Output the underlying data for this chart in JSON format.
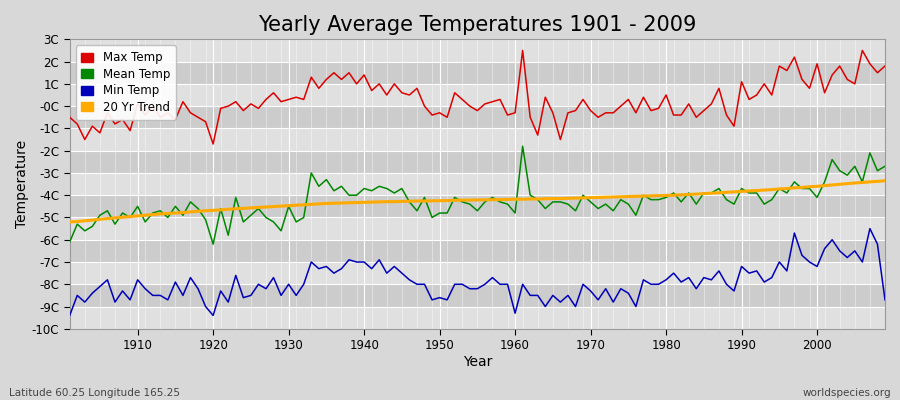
{
  "title": "Yearly Average Temperatures 1901 - 2009",
  "xlabel": "Year",
  "ylabel": "Temperature",
  "lat_lon_label": "Latitude 60.25 Longitude 165.25",
  "watermark": "worldspecies.org",
  "years": [
    1901,
    1902,
    1903,
    1904,
    1905,
    1906,
    1907,
    1908,
    1909,
    1910,
    1911,
    1912,
    1913,
    1914,
    1915,
    1916,
    1917,
    1918,
    1919,
    1920,
    1921,
    1922,
    1923,
    1924,
    1925,
    1926,
    1927,
    1928,
    1929,
    1930,
    1931,
    1932,
    1933,
    1934,
    1935,
    1936,
    1937,
    1938,
    1939,
    1940,
    1941,
    1942,
    1943,
    1944,
    1945,
    1946,
    1947,
    1948,
    1949,
    1950,
    1951,
    1952,
    1953,
    1954,
    1955,
    1956,
    1957,
    1958,
    1959,
    1960,
    1961,
    1962,
    1963,
    1964,
    1965,
    1966,
    1967,
    1968,
    1969,
    1970,
    1971,
    1972,
    1973,
    1974,
    1975,
    1976,
    1977,
    1978,
    1979,
    1980,
    1981,
    1982,
    1983,
    1984,
    1985,
    1986,
    1987,
    1988,
    1989,
    1990,
    1991,
    1992,
    1993,
    1994,
    1995,
    1996,
    1997,
    1998,
    1999,
    2000,
    2001,
    2002,
    2003,
    2004,
    2005,
    2006,
    2007,
    2008,
    2009
  ],
  "max_temp": [
    -0.5,
    -0.8,
    -1.5,
    -0.9,
    -1.2,
    -0.3,
    -0.8,
    -0.6,
    -1.1,
    0.1,
    -0.4,
    0.0,
    -0.5,
    -0.3,
    -0.6,
    0.2,
    -0.3,
    -0.5,
    -0.7,
    -1.7,
    -0.1,
    0.0,
    0.2,
    -0.2,
    0.1,
    -0.1,
    0.3,
    0.6,
    0.2,
    0.3,
    0.4,
    0.3,
    1.3,
    0.8,
    1.2,
    1.5,
    1.2,
    1.5,
    1.0,
    1.4,
    0.7,
    1.0,
    0.5,
    1.0,
    0.6,
    0.5,
    0.8,
    0.0,
    -0.4,
    -0.3,
    -0.5,
    0.6,
    0.3,
    0.0,
    -0.2,
    0.1,
    0.2,
    0.3,
    -0.4,
    -0.3,
    2.5,
    -0.5,
    -1.3,
    0.4,
    -0.3,
    -1.5,
    -0.3,
    -0.2,
    0.3,
    -0.2,
    -0.5,
    -0.3,
    -0.3,
    0.0,
    0.3,
    -0.3,
    0.4,
    -0.2,
    -0.1,
    0.5,
    -0.4,
    -0.4,
    0.1,
    -0.5,
    -0.2,
    0.1,
    0.8,
    -0.4,
    -0.9,
    1.1,
    0.3,
    0.5,
    1.0,
    0.5,
    1.8,
    1.6,
    2.2,
    1.2,
    0.8,
    1.9,
    0.6,
    1.4,
    1.8,
    1.2,
    1.0,
    2.5,
    1.9,
    1.5,
    1.8
  ],
  "mean_temp": [
    -6.1,
    -5.3,
    -5.6,
    -5.4,
    -4.9,
    -4.7,
    -5.3,
    -4.8,
    -5.0,
    -4.5,
    -5.2,
    -4.8,
    -4.7,
    -5.0,
    -4.5,
    -4.9,
    -4.3,
    -4.6,
    -5.1,
    -6.2,
    -4.6,
    -5.8,
    -4.1,
    -5.2,
    -4.9,
    -4.6,
    -5.0,
    -5.2,
    -5.6,
    -4.5,
    -5.2,
    -5.0,
    -3.0,
    -3.6,
    -3.3,
    -3.8,
    -3.6,
    -4.0,
    -4.0,
    -3.7,
    -3.8,
    -3.6,
    -3.7,
    -3.9,
    -3.7,
    -4.3,
    -4.7,
    -4.1,
    -5.0,
    -4.8,
    -4.8,
    -4.1,
    -4.3,
    -4.4,
    -4.7,
    -4.3,
    -4.1,
    -4.3,
    -4.4,
    -4.8,
    -1.8,
    -4.0,
    -4.2,
    -4.6,
    -4.3,
    -4.3,
    -4.4,
    -4.7,
    -4.0,
    -4.3,
    -4.6,
    -4.4,
    -4.7,
    -4.2,
    -4.4,
    -4.9,
    -4.0,
    -4.2,
    -4.2,
    -4.1,
    -3.9,
    -4.3,
    -3.9,
    -4.4,
    -3.9,
    -3.9,
    -3.7,
    -4.2,
    -4.4,
    -3.7,
    -3.9,
    -3.9,
    -4.4,
    -4.2,
    -3.7,
    -3.9,
    -3.4,
    -3.7,
    -3.7,
    -4.1,
    -3.4,
    -2.4,
    -2.9,
    -3.1,
    -2.7,
    -3.4,
    -2.1,
    -2.9,
    -2.7
  ],
  "min_temp": [
    -9.4,
    -8.5,
    -8.8,
    -8.4,
    -8.1,
    -7.8,
    -8.8,
    -8.3,
    -8.7,
    -7.8,
    -8.2,
    -8.5,
    -8.5,
    -8.7,
    -7.9,
    -8.5,
    -7.7,
    -8.2,
    -9.0,
    -9.4,
    -8.3,
    -8.8,
    -7.6,
    -8.6,
    -8.5,
    -8.0,
    -8.2,
    -7.7,
    -8.5,
    -8.0,
    -8.5,
    -8.0,
    -7.0,
    -7.3,
    -7.2,
    -7.5,
    -7.3,
    -6.9,
    -7.0,
    -7.0,
    -7.3,
    -6.9,
    -7.5,
    -7.2,
    -7.5,
    -7.8,
    -8.0,
    -8.0,
    -8.7,
    -8.6,
    -8.7,
    -8.0,
    -8.0,
    -8.2,
    -8.2,
    -8.0,
    -7.7,
    -8.0,
    -8.0,
    -9.3,
    -8.0,
    -8.5,
    -8.5,
    -9.0,
    -8.5,
    -8.8,
    -8.5,
    -9.0,
    -8.0,
    -8.3,
    -8.7,
    -8.2,
    -8.8,
    -8.2,
    -8.4,
    -9.0,
    -7.8,
    -8.0,
    -8.0,
    -7.8,
    -7.5,
    -7.9,
    -7.7,
    -8.2,
    -7.7,
    -7.8,
    -7.4,
    -8.0,
    -8.3,
    -7.2,
    -7.5,
    -7.4,
    -7.9,
    -7.7,
    -7.0,
    -7.4,
    -5.7,
    -6.7,
    -7.0,
    -7.2,
    -6.4,
    -6.0,
    -6.5,
    -6.8,
    -6.5,
    -7.0,
    -5.5,
    -6.2,
    -8.7
  ],
  "trend_temp": [
    -5.2,
    -5.18,
    -5.15,
    -5.12,
    -5.08,
    -5.05,
    -5.02,
    -4.99,
    -4.96,
    -4.93,
    -4.9,
    -4.87,
    -4.84,
    -4.82,
    -4.8,
    -4.78,
    -4.75,
    -4.72,
    -4.7,
    -4.68,
    -4.66,
    -4.63,
    -4.61,
    -4.59,
    -4.57,
    -4.55,
    -4.53,
    -4.51,
    -4.49,
    -4.47,
    -4.45,
    -4.43,
    -4.41,
    -4.39,
    -4.37,
    -4.36,
    -4.35,
    -4.34,
    -4.33,
    -4.32,
    -4.31,
    -4.3,
    -4.29,
    -4.29,
    -4.28,
    -4.27,
    -4.26,
    -4.26,
    -4.25,
    -4.25,
    -4.24,
    -4.23,
    -4.22,
    -4.22,
    -4.21,
    -4.21,
    -4.2,
    -4.2,
    -4.19,
    -4.18,
    -4.18,
    -4.17,
    -4.17,
    -4.16,
    -4.15,
    -4.15,
    -4.14,
    -4.13,
    -4.12,
    -4.11,
    -4.1,
    -4.09,
    -4.08,
    -4.07,
    -4.06,
    -4.05,
    -4.04,
    -4.03,
    -4.02,
    -4.01,
    -4.0,
    -3.98,
    -3.97,
    -3.95,
    -3.93,
    -3.91,
    -3.89,
    -3.87,
    -3.85,
    -3.83,
    -3.81,
    -3.79,
    -3.77,
    -3.75,
    -3.72,
    -3.7,
    -3.67,
    -3.65,
    -3.62,
    -3.6,
    -3.57,
    -3.54,
    -3.51,
    -3.48,
    -3.45,
    -3.43,
    -3.4,
    -3.38,
    -3.35
  ],
  "max_color": "#dd0000",
  "mean_color": "#008800",
  "min_color": "#0000bb",
  "trend_color": "#ffaa00",
  "bg_color": "#d8d8d8",
  "plot_bg_light": "#e0e0e0",
  "plot_bg_dark": "#cccccc",
  "grid_color": "#ffffff",
  "ylim": [
    -10,
    3
  ],
  "yticks": [
    -10,
    -9,
    -8,
    -7,
    -6,
    -5,
    -4,
    -3,
    -2,
    -1,
    0,
    1,
    2,
    3
  ],
  "ytick_labels": [
    "-10C",
    "-9C",
    "-8C",
    "-7C",
    "-6C",
    "-5C",
    "-4C",
    "-3C",
    "-2C",
    "-1C",
    "-0C",
    "1C",
    "2C",
    "3C"
  ],
  "xlim": [
    1901,
    2009
  ],
  "xticks": [
    1910,
    1920,
    1930,
    1940,
    1950,
    1960,
    1970,
    1980,
    1990,
    2000
  ],
  "linewidth": 1.1,
  "trend_linewidth": 2.2,
  "title_fontsize": 15,
  "axis_label_fontsize": 10,
  "tick_fontsize": 8.5,
  "legend_fontsize": 8.5
}
